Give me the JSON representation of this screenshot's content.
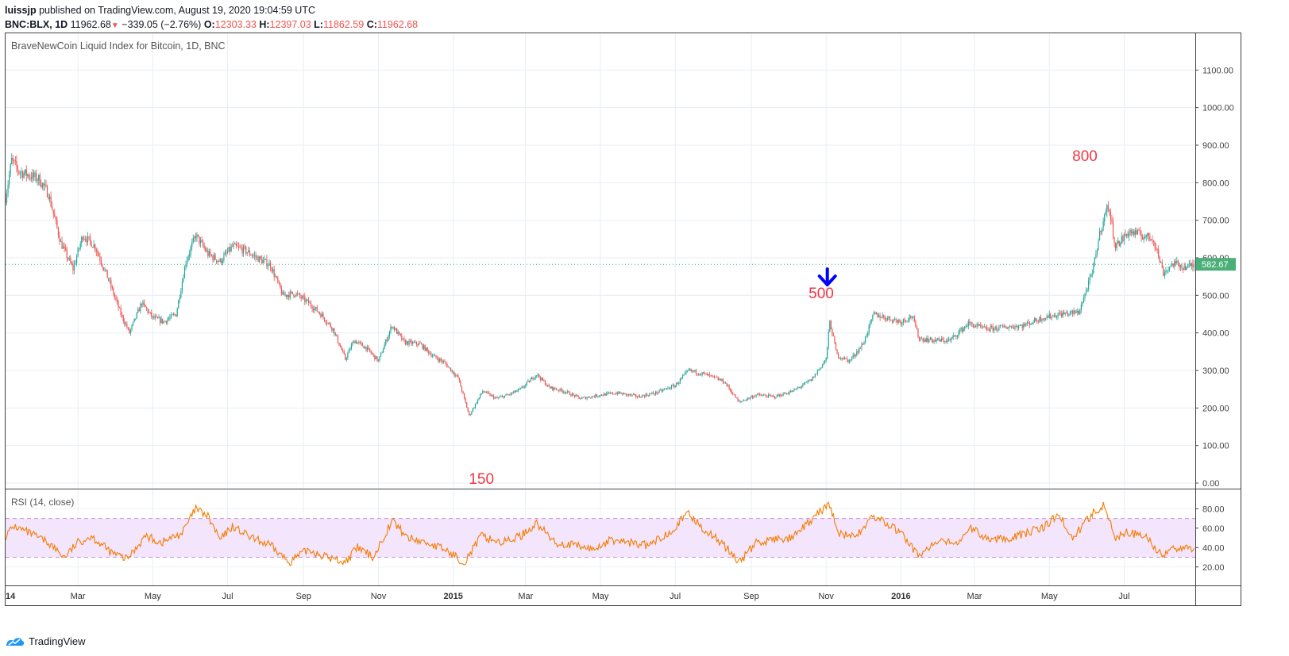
{
  "header": {
    "author": "luissjp",
    "published_text": "published on TradingView.com, August 19, 2020 19:04:59 UTC",
    "symbol": "BNC:BLX, 1D",
    "last": "11962.68",
    "change": "−339.05 (−2.76%)",
    "open_label": "O:",
    "open": "12303.33",
    "high_label": "H:",
    "high": "12397.03",
    "low_label": "L:",
    "low": "11862.59",
    "close_label": "C:",
    "close": "11962.68"
  },
  "footer": {
    "brand": "TradingView"
  },
  "colors": {
    "up": "#26a69a",
    "down": "#ef5350",
    "rsi": "#f57c00",
    "rsi_band": "#f3e5fc",
    "annotation": "#f23645",
    "arrow": "#0000ff",
    "price_tag": "#4caf78"
  },
  "chart_data": {
    "type": "candlestick",
    "title": "BraveNewCoin Liquid Index for Bitcoin, 1D, BNC",
    "price_axis": {
      "range": [
        0,
        1200
      ],
      "ticks": [
        0,
        100,
        200,
        300,
        400,
        500,
        600,
        700,
        800,
        900,
        1000,
        1100
      ],
      "tick_labels": [
        "0.00",
        "100.00",
        "200.00",
        "300.00",
        "400.00",
        "500.00",
        "600.00",
        "700.00",
        "800.00",
        "900.00",
        "1000.00",
        "1100.00"
      ]
    },
    "last_price_label": "582.67",
    "last_price": 582.67,
    "time_axis": {
      "range": [
        "2014-01-01",
        "2016-08-28"
      ],
      "ticks": [
        {
          "date": "2014-01-01",
          "label": "14",
          "bold": true
        },
        {
          "date": "2014-03-01",
          "label": "Mar",
          "bold": false
        },
        {
          "date": "2014-05-01",
          "label": "May",
          "bold": false
        },
        {
          "date": "2014-07-01",
          "label": "Jul",
          "bold": false
        },
        {
          "date": "2014-09-01",
          "label": "Sep",
          "bold": false
        },
        {
          "date": "2014-11-01",
          "label": "Nov",
          "bold": false
        },
        {
          "date": "2015-01-01",
          "label": "2015",
          "bold": true
        },
        {
          "date": "2015-03-01",
          "label": "Mar",
          "bold": false
        },
        {
          "date": "2015-05-01",
          "label": "May",
          "bold": false
        },
        {
          "date": "2015-07-01",
          "label": "Jul",
          "bold": false
        },
        {
          "date": "2015-09-01",
          "label": "Sep",
          "bold": false
        },
        {
          "date": "2015-11-01",
          "label": "Nov",
          "bold": false
        },
        {
          "date": "2016-01-01",
          "label": "2016",
          "bold": true
        },
        {
          "date": "2016-03-01",
          "label": "Mar",
          "bold": false
        },
        {
          "date": "2016-05-01",
          "label": "May",
          "bold": false
        },
        {
          "date": "2016-07-01",
          "label": "Jul",
          "bold": false
        }
      ]
    },
    "price_path": [
      [
        "2014-01-01",
        760
      ],
      [
        "2014-01-06",
        860
      ],
      [
        "2014-01-12",
        830
      ],
      [
        "2014-01-20",
        820
      ],
      [
        "2014-01-28",
        810
      ],
      [
        "2014-02-05",
        770
      ],
      [
        "2014-02-15",
        640
      ],
      [
        "2014-02-25",
        570
      ],
      [
        "2014-03-05",
        660
      ],
      [
        "2014-03-15",
        630
      ],
      [
        "2014-03-25",
        550
      ],
      [
        "2014-04-05",
        450
      ],
      [
        "2014-04-12",
        400
      ],
      [
        "2014-04-22",
        480
      ],
      [
        "2014-05-01",
        440
      ],
      [
        "2014-05-10",
        430
      ],
      [
        "2014-05-20",
        450
      ],
      [
        "2014-05-28",
        590
      ],
      [
        "2014-06-05",
        660
      ],
      [
        "2014-06-15",
        610
      ],
      [
        "2014-06-25",
        590
      ],
      [
        "2014-07-05",
        630
      ],
      [
        "2014-07-15",
        620
      ],
      [
        "2014-07-25",
        600
      ],
      [
        "2014-08-05",
        580
      ],
      [
        "2014-08-15",
        500
      ],
      [
        "2014-08-25",
        505
      ],
      [
        "2014-09-05",
        480
      ],
      [
        "2014-09-15",
        450
      ],
      [
        "2014-09-25",
        410
      ],
      [
        "2014-10-05",
        330
      ],
      [
        "2014-10-12",
        380
      ],
      [
        "2014-10-22",
        360
      ],
      [
        "2014-11-01",
        325
      ],
      [
        "2014-11-12",
        420
      ],
      [
        "2014-11-22",
        375
      ],
      [
        "2014-12-05",
        370
      ],
      [
        "2014-12-15",
        340
      ],
      [
        "2014-12-25",
        320
      ],
      [
        "2015-01-05",
        280
      ],
      [
        "2015-01-14",
        180
      ],
      [
        "2015-01-25",
        245
      ],
      [
        "2015-02-05",
        225
      ],
      [
        "2015-02-15",
        235
      ],
      [
        "2015-02-25",
        250
      ],
      [
        "2015-03-10",
        290
      ],
      [
        "2015-03-20",
        255
      ],
      [
        "2015-04-01",
        245
      ],
      [
        "2015-04-15",
        225
      ],
      [
        "2015-05-01",
        235
      ],
      [
        "2015-05-15",
        240
      ],
      [
        "2015-06-01",
        230
      ],
      [
        "2015-06-15",
        240
      ],
      [
        "2015-07-01",
        260
      ],
      [
        "2015-07-12",
        300
      ],
      [
        "2015-07-25",
        290
      ],
      [
        "2015-08-10",
        270
      ],
      [
        "2015-08-22",
        215
      ],
      [
        "2015-09-05",
        235
      ],
      [
        "2015-09-20",
        230
      ],
      [
        "2015-10-05",
        245
      ],
      [
        "2015-10-20",
        275
      ],
      [
        "2015-11-01",
        330
      ],
      [
        "2015-11-04",
        430
      ],
      [
        "2015-11-10",
        340
      ],
      [
        "2015-11-20",
        325
      ],
      [
        "2015-12-01",
        370
      ],
      [
        "2015-12-10",
        450
      ],
      [
        "2015-12-20",
        440
      ],
      [
        "2016-01-01",
        430
      ],
      [
        "2016-01-10",
        445
      ],
      [
        "2016-01-16",
        385
      ],
      [
        "2016-01-28",
        380
      ],
      [
        "2016-02-10",
        380
      ],
      [
        "2016-02-25",
        425
      ],
      [
        "2016-03-10",
        410
      ],
      [
        "2016-03-25",
        415
      ],
      [
        "2016-04-10",
        420
      ],
      [
        "2016-04-25",
        440
      ],
      [
        "2016-05-10",
        450
      ],
      [
        "2016-05-25",
        455
      ],
      [
        "2016-06-05",
        560
      ],
      [
        "2016-06-12",
        680
      ],
      [
        "2016-06-18",
        740
      ],
      [
        "2016-06-24",
        630
      ],
      [
        "2016-07-05",
        670
      ],
      [
        "2016-07-15",
        660
      ],
      [
        "2016-07-25",
        650
      ],
      [
        "2016-08-02",
        560
      ],
      [
        "2016-08-10",
        585
      ],
      [
        "2016-08-20",
        575
      ],
      [
        "2016-08-27",
        580
      ]
    ],
    "annotations": [
      {
        "text": "150",
        "date": "2015-01-24",
        "price": -2
      },
      {
        "text": "500",
        "date": "2015-10-28",
        "price": 492
      },
      {
        "text": "800",
        "date": "2016-05-30",
        "price": 858
      }
    ],
    "arrow": {
      "date": "2015-11-02",
      "price": 528
    },
    "rsi": {
      "title": "RSI (14, close)",
      "range": [
        10,
        95
      ],
      "ticks": [
        20,
        40,
        60,
        80
      ],
      "tick_labels": [
        "20.00",
        "40.00",
        "60.00",
        "80.00"
      ],
      "band": [
        30,
        70
      ],
      "path": [
        [
          "2014-01-01",
          52
        ],
        [
          "2014-01-08",
          62
        ],
        [
          "2014-01-20",
          55
        ],
        [
          "2014-02-05",
          45
        ],
        [
          "2014-02-18",
          30
        ],
        [
          "2014-03-01",
          45
        ],
        [
          "2014-03-12",
          52
        ],
        [
          "2014-03-28",
          35
        ],
        [
          "2014-04-10",
          28
        ],
        [
          "2014-04-25",
          52
        ],
        [
          "2014-05-08",
          45
        ],
        [
          "2014-05-25",
          55
        ],
        [
          "2014-06-05",
          80
        ],
        [
          "2014-06-15",
          72
        ],
        [
          "2014-06-25",
          48
        ],
        [
          "2014-07-05",
          62
        ],
        [
          "2014-07-20",
          50
        ],
        [
          "2014-08-05",
          42
        ],
        [
          "2014-08-20",
          25
        ],
        [
          "2014-09-05",
          38
        ],
        [
          "2014-09-20",
          30
        ],
        [
          "2014-10-05",
          25
        ],
        [
          "2014-10-15",
          40
        ],
        [
          "2014-10-28",
          30
        ],
        [
          "2014-11-12",
          68
        ],
        [
          "2014-11-25",
          50
        ],
        [
          "2014-12-10",
          45
        ],
        [
          "2014-12-25",
          38
        ],
        [
          "2015-01-10",
          25
        ],
        [
          "2015-01-24",
          52
        ],
        [
          "2015-02-10",
          45
        ],
        [
          "2015-02-25",
          52
        ],
        [
          "2015-03-10",
          65
        ],
        [
          "2015-03-25",
          45
        ],
        [
          "2015-04-10",
          42
        ],
        [
          "2015-04-25",
          38
        ],
        [
          "2015-05-10",
          48
        ],
        [
          "2015-05-25",
          45
        ],
        [
          "2015-06-10",
          42
        ],
        [
          "2015-06-25",
          55
        ],
        [
          "2015-07-12",
          75
        ],
        [
          "2015-07-25",
          58
        ],
        [
          "2015-08-08",
          45
        ],
        [
          "2015-08-22",
          25
        ],
        [
          "2015-09-05",
          45
        ],
        [
          "2015-09-20",
          48
        ],
        [
          "2015-10-05",
          50
        ],
        [
          "2015-10-20",
          68
        ],
        [
          "2015-11-03",
          85
        ],
        [
          "2015-11-12",
          55
        ],
        [
          "2015-11-25",
          50
        ],
        [
          "2015-12-08",
          72
        ],
        [
          "2015-12-20",
          65
        ],
        [
          "2016-01-01",
          55
        ],
        [
          "2016-01-15",
          32
        ],
        [
          "2016-01-30",
          45
        ],
        [
          "2016-02-15",
          45
        ],
        [
          "2016-02-28",
          60
        ],
        [
          "2016-03-12",
          48
        ],
        [
          "2016-03-28",
          50
        ],
        [
          "2016-04-12",
          55
        ],
        [
          "2016-04-28",
          62
        ],
        [
          "2016-05-08",
          75
        ],
        [
          "2016-05-20",
          50
        ],
        [
          "2016-06-05",
          75
        ],
        [
          "2016-06-15",
          85
        ],
        [
          "2016-06-24",
          50
        ],
        [
          "2016-07-05",
          56
        ],
        [
          "2016-07-20",
          50
        ],
        [
          "2016-08-02",
          30
        ],
        [
          "2016-08-12",
          40
        ],
        [
          "2016-08-27",
          40
        ]
      ]
    }
  }
}
